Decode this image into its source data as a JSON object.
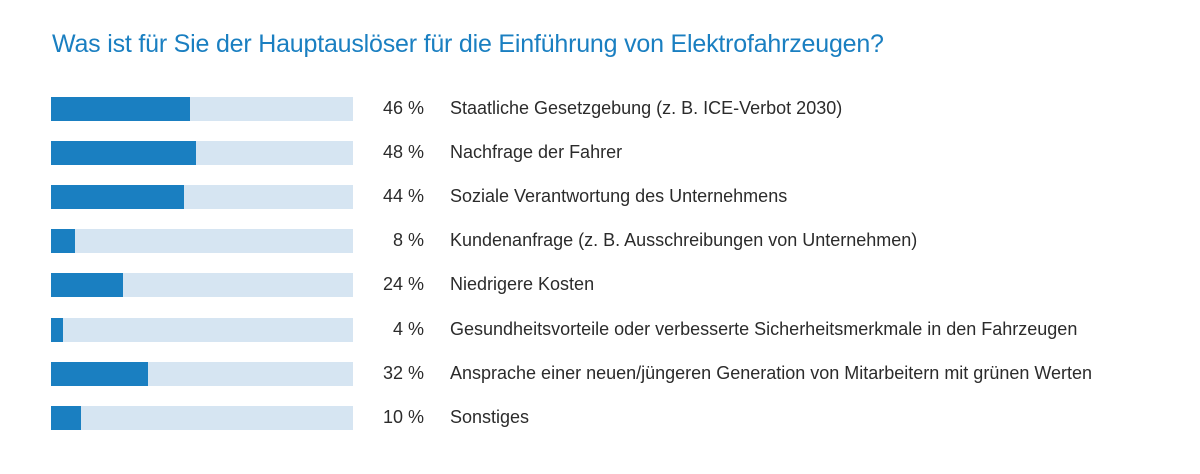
{
  "chart_data": {
    "type": "bar",
    "title": "Was ist für Sie der Hauptauslöser für die Einführung von Elektrofahrzeugen?",
    "orientation": "horizontal",
    "xlim": [
      0,
      100
    ],
    "grid": false,
    "categories": [
      "Staatliche Gesetzgebung (z. B. ICE-Verbot 2030)",
      "Nachfrage der Fahrer",
      "Soziale Verantwortung des Unternehmens",
      "Kundenanfrage (z. B. Ausschreibungen von Unternehmen)",
      "Niedrigere Kosten",
      "Gesundheitsvorteile oder verbesserte Sicherheitsmerkmale in den Fahrzeugen",
      "Ansprache einer neuen/jüngeren Generation von Mitarbeitern mit grünen Werten",
      "Sonstiges"
    ],
    "values": [
      46,
      48,
      44,
      8,
      24,
      4,
      32,
      10
    ],
    "value_labels": [
      "46 %",
      "48 %",
      "44 %",
      "8 %",
      "24 %",
      "4 %",
      "32 %",
      "10 %"
    ],
    "colors": {
      "bar": "#1a7fc1",
      "track": "#d6e5f2",
      "title": "#1a7fc1",
      "text": "#2b2b2b"
    }
  }
}
